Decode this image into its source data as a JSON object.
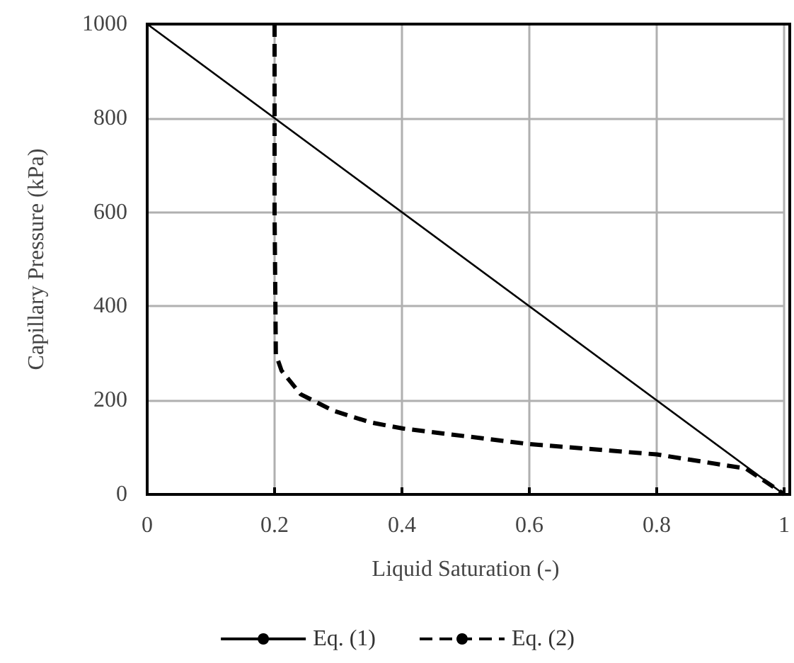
{
  "chart_data": {
    "type": "line",
    "xlabel": "Liquid Saturation (-)",
    "ylabel": "Capillary Pressure (kPa)",
    "xlim": [
      0,
      1
    ],
    "xticks": [
      0,
      0.2,
      0.4,
      0.6,
      0.8,
      1
    ],
    "ylim": [
      0,
      1000
    ],
    "yticks": [
      0,
      200,
      400,
      600,
      800,
      1000
    ],
    "grid": true,
    "legend": "bottom",
    "marker": "none",
    "series": [
      {
        "name": "Eq. (1)",
        "color": "#000000",
        "line_style": "solid",
        "x": [
          0,
          1
        ],
        "values": [
          1000,
          0
        ]
      },
      {
        "name": "Eq. (2)",
        "color": "#000000",
        "line_style": "dashed",
        "x": [
          0.2,
          0.2,
          0.202,
          0.211,
          0.241,
          0.292,
          0.351,
          0.402,
          0.6,
          0.8,
          0.94,
          0.99,
          1
        ],
        "values": [
          1000,
          600,
          298,
          263,
          213,
          178,
          153,
          140,
          107,
          85,
          55,
          10,
          0
        ]
      }
    ]
  }
}
